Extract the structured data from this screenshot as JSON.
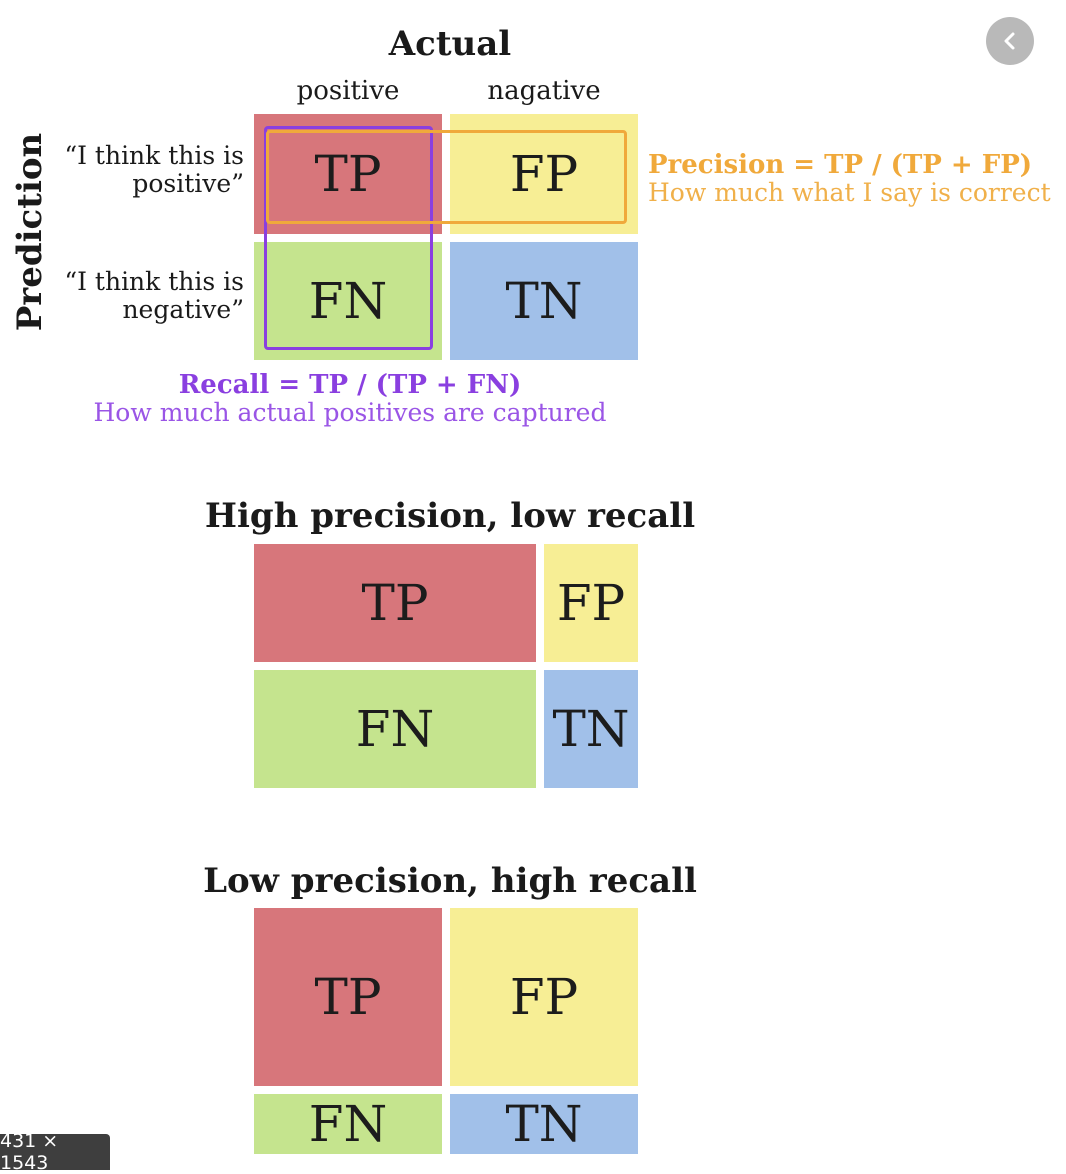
{
  "header": {
    "actual_title": "Actual",
    "col_positive": "positive",
    "col_negative": "nagative",
    "prediction_title": "Prediction",
    "row_positive": "“I think this is\npositive”",
    "row_negative": "“I think this is\nnegative”"
  },
  "cells": {
    "tp": "TP",
    "fp": "FP",
    "fn": "FN",
    "tn": "TN"
  },
  "precision": {
    "formula": "Precision = TP / (TP + FP)",
    "description": "How much what I say is correct",
    "color": "#f0a93b"
  },
  "recall": {
    "formula": "Recall = TP / (TP + FN)",
    "description": "How much actual positives are captured",
    "color": "#8a3fe0"
  },
  "section_high_precision": {
    "title": "High precision, low recall"
  },
  "section_low_precision": {
    "title": "Low precision, high recall"
  },
  "colors": {
    "tp": "#d7767b",
    "fp": "#f7ee95",
    "fn": "#c5e48e",
    "tn": "#a1c0e9"
  },
  "viewer": {
    "back_icon": "chevron-left-icon",
    "dimensions": "431 × 1543"
  }
}
